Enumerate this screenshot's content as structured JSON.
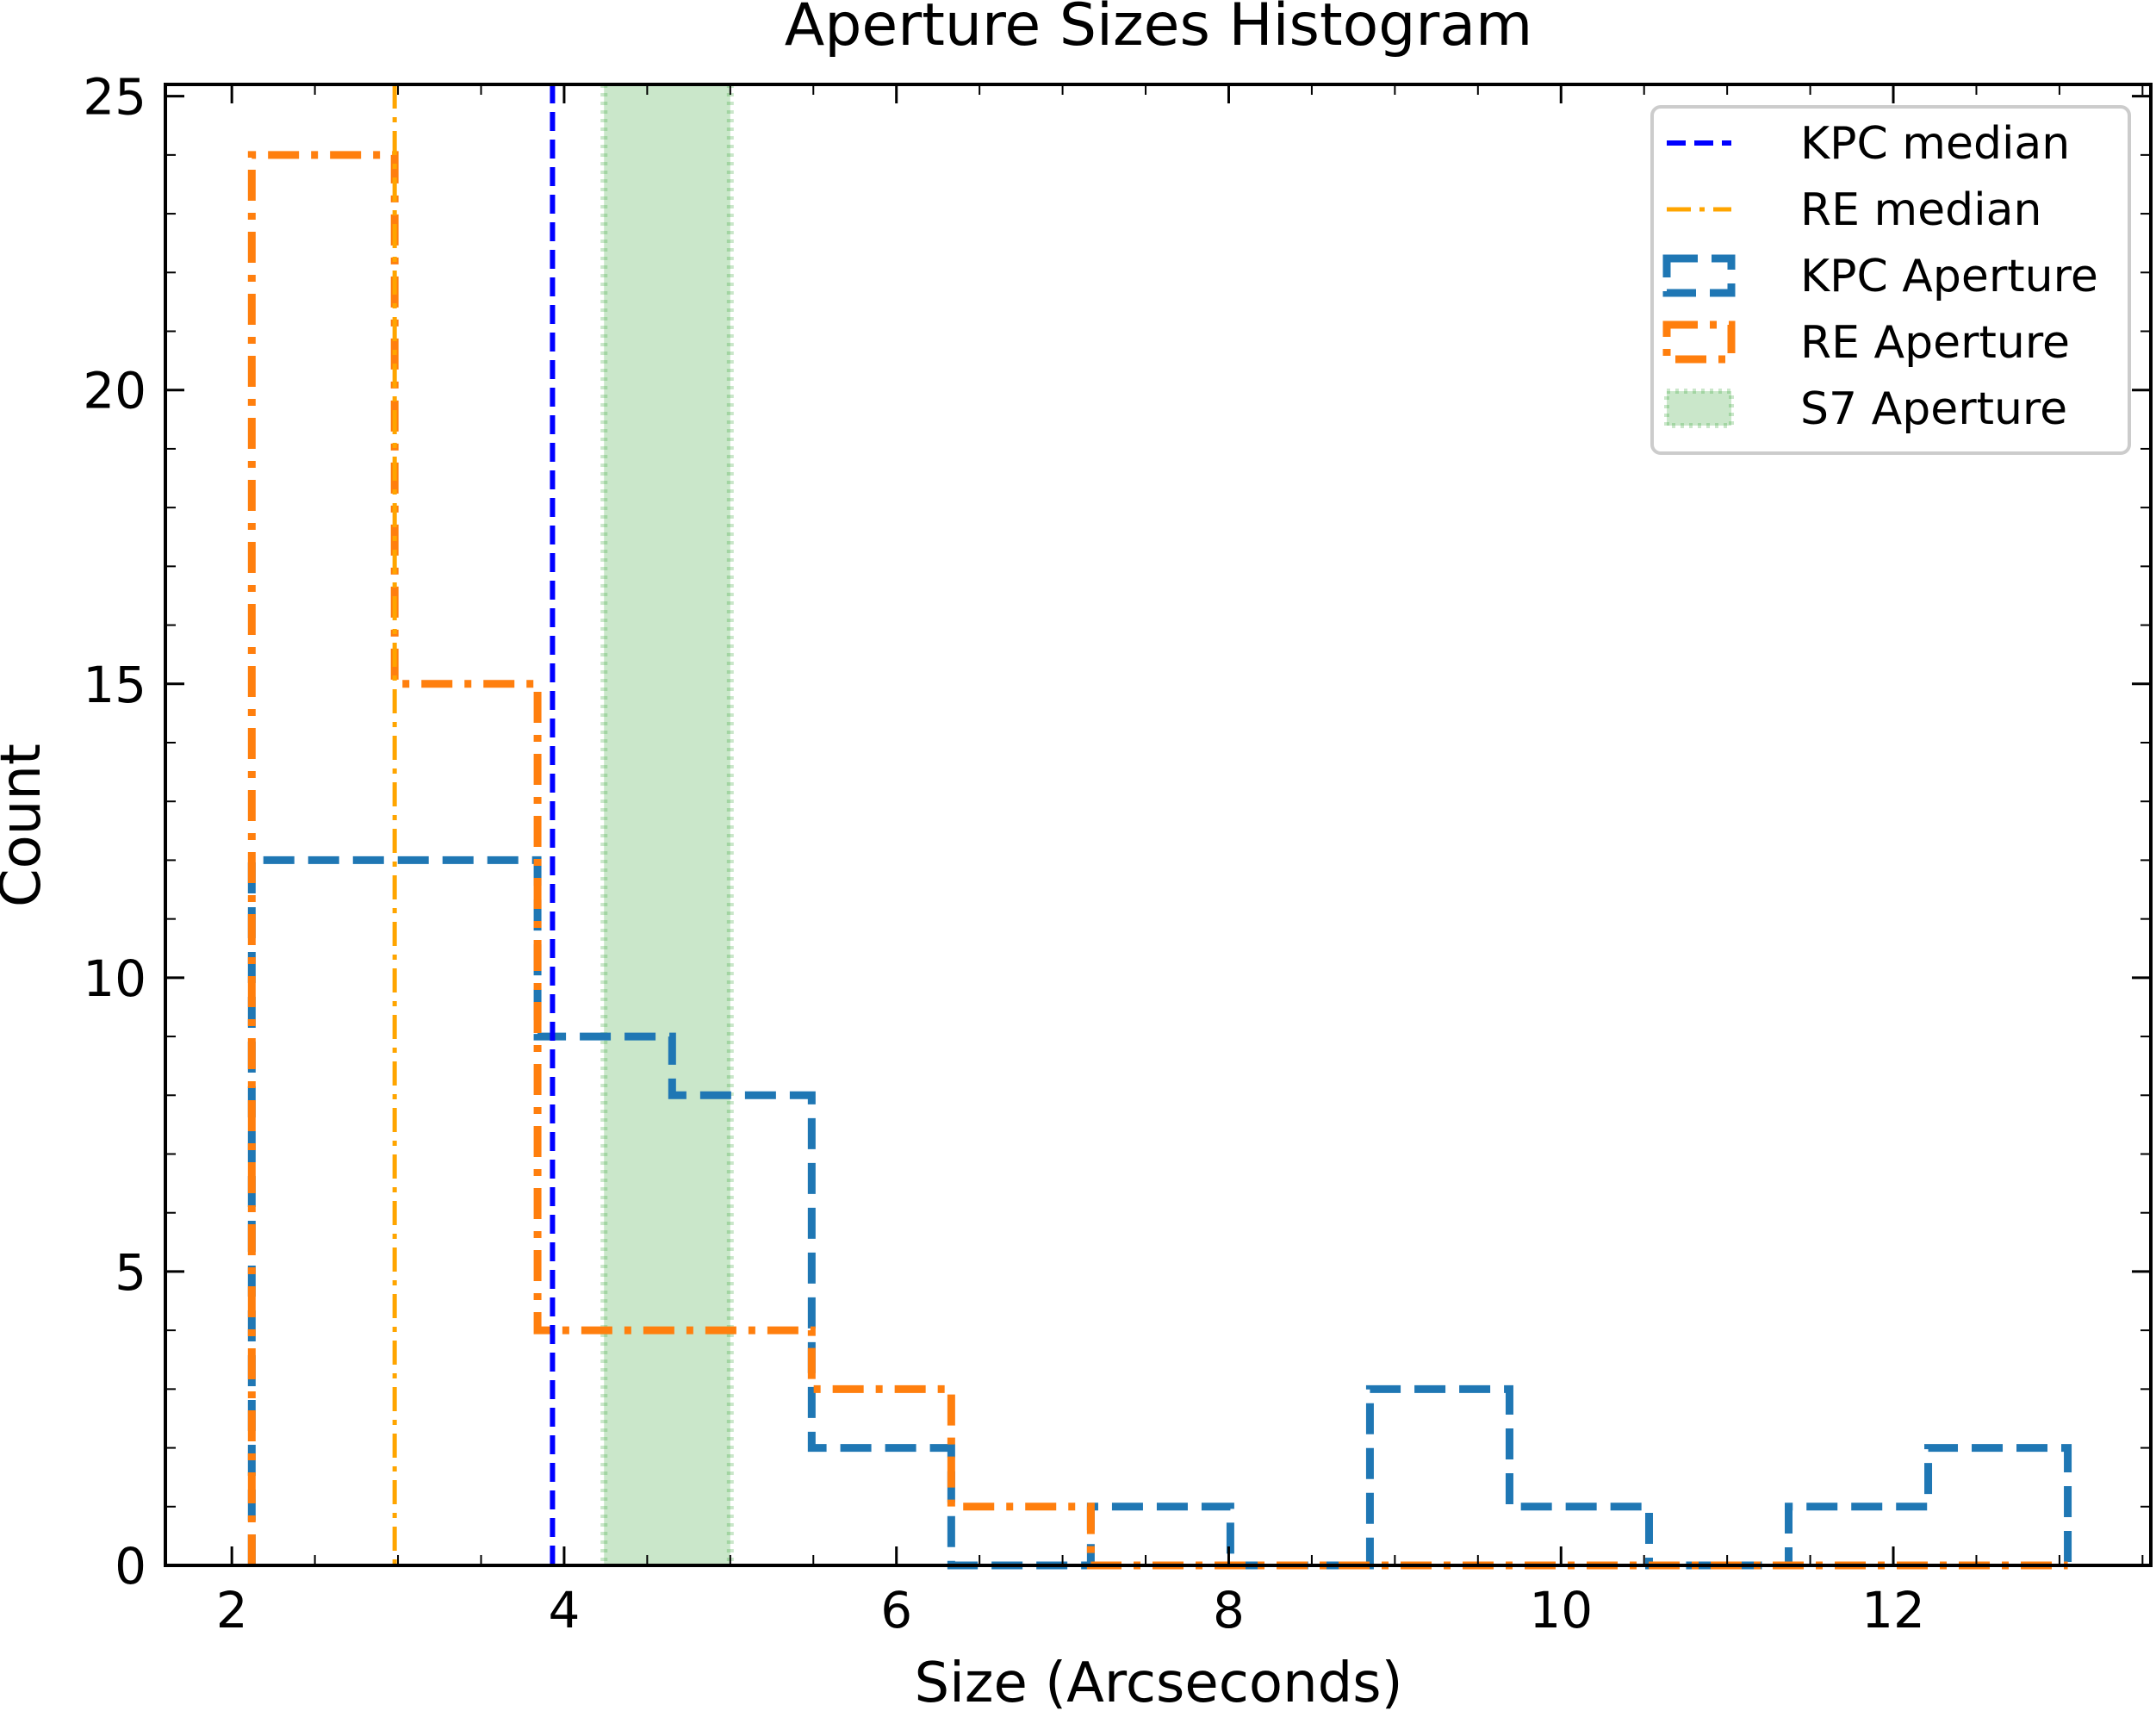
{
  "chart_data": {
    "type": "histogram",
    "title": "Aperture Sizes Histogram",
    "xlabel": "Size (Arcseconds)",
    "ylabel": "Count",
    "xlim": [
      1.6,
      13.55
    ],
    "ylim": [
      0,
      25.2
    ],
    "xticks": [
      2,
      4,
      6,
      8,
      10,
      12
    ],
    "yticks": [
      0,
      5,
      10,
      15,
      20,
      25
    ],
    "legend_position": "top-right",
    "colors": {
      "kpc_median": "#0000ff",
      "re_median": "#ffa500",
      "kpc_aperture": "#1f77b4",
      "re_aperture": "#ff7f0e",
      "s7_aperture": "#2ca02c"
    },
    "series": [
      {
        "name": "KPC Aperture",
        "kind": "step-histogram",
        "bin_edges": [
          2.12,
          2.98,
          3.84,
          4.65,
          5.49,
          6.33,
          7.17,
          8.01,
          8.85,
          9.69,
          10.53,
          11.37,
          12.21,
          13.05
        ],
        "counts": [
          12,
          12,
          9,
          8,
          2,
          0,
          1,
          0,
          3,
          1,
          0,
          1,
          2
        ]
      },
      {
        "name": "RE Aperture",
        "kind": "step-histogram",
        "bin_edges": [
          2.12,
          2.98,
          3.84,
          4.65,
          5.49,
          6.33,
          7.17,
          8.01,
          8.85,
          9.69,
          10.53,
          11.37,
          12.21,
          13.05
        ],
        "counts": [
          24,
          15,
          4,
          4,
          3,
          1,
          0,
          0,
          0,
          0,
          0,
          0,
          0
        ]
      },
      {
        "name": "KPC median",
        "kind": "vline",
        "x": 3.93
      },
      {
        "name": "RE median",
        "kind": "vline",
        "x": 2.98
      },
      {
        "name": "S7 Aperture",
        "kind": "vspan",
        "x_range": [
          4.24,
          5.0
        ]
      }
    ],
    "legend": [
      "KPC median",
      "RE median",
      "KPC Aperture",
      "RE Aperture",
      "S7 Aperture"
    ]
  }
}
